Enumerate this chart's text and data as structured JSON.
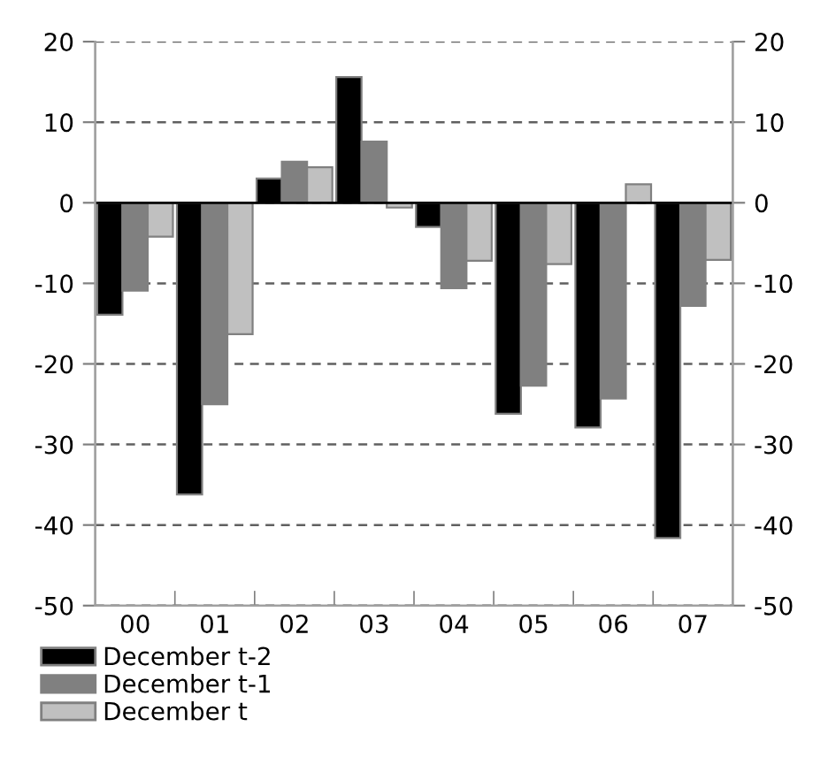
{
  "chart_data": {
    "type": "bar",
    "categories": [
      "00",
      "01",
      "02",
      "03",
      "04",
      "05",
      "06",
      "07"
    ],
    "series": [
      {
        "name": "December t-2",
        "color": "#000000",
        "values": [
          -13.9,
          -36.2,
          3.0,
          15.6,
          -3.0,
          -26.2,
          -27.9,
          -41.6
        ]
      },
      {
        "name": "December t-1",
        "color": "#808080",
        "values": [
          -10.9,
          -25.0,
          5.1,
          7.6,
          -10.6,
          -22.7,
          -24.3,
          -12.8
        ]
      },
      {
        "name": "December t",
        "color": "#c0c0c0",
        "values": [
          -4.2,
          -16.3,
          4.4,
          -0.6,
          -7.2,
          -7.6,
          2.3,
          -7.1
        ]
      }
    ],
    "ylim": [
      -50,
      20
    ],
    "yticks": [
      -50,
      -40,
      -30,
      -20,
      -10,
      0,
      10,
      20
    ],
    "y2lim": [
      -50,
      20
    ],
    "y2ticks": [
      -50,
      -40,
      -30,
      -20,
      -10,
      0,
      10,
      20
    ],
    "grid": "y",
    "legend": "bottom left"
  }
}
